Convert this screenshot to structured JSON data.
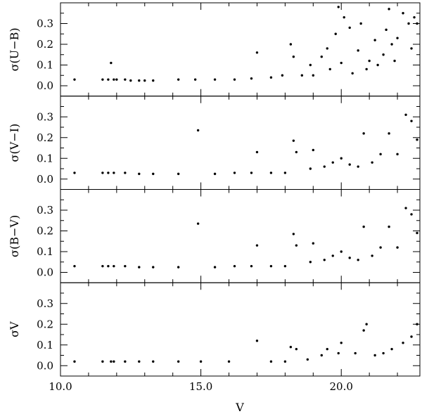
{
  "chart_data": {
    "type": "scatter",
    "xlabel": "V",
    "xlim": [
      10.0,
      22.8
    ],
    "x_ticks": [
      10.0,
      15.0,
      20.0
    ],
    "x_tick_labels": [
      "10.0",
      "15.0",
      "20.0"
    ],
    "panels": [
      {
        "ylabel": "σ(U−B)",
        "ylim": [
          -0.05,
          0.4
        ],
        "y_ticks": [
          0.0,
          0.1,
          0.2,
          0.3
        ],
        "y_tick_labels": [
          "0.0",
          "0.1",
          "0.2",
          "0.3"
        ],
        "points": [
          [
            10.5,
            0.03
          ],
          [
            11.5,
            0.03
          ],
          [
            11.7,
            0.03
          ],
          [
            11.8,
            0.11
          ],
          [
            11.9,
            0.03
          ],
          [
            12.0,
            0.03
          ],
          [
            12.3,
            0.03
          ],
          [
            12.5,
            0.025
          ],
          [
            12.8,
            0.025
          ],
          [
            13.0,
            0.025
          ],
          [
            13.3,
            0.025
          ],
          [
            14.2,
            0.03
          ],
          [
            14.8,
            0.03
          ],
          [
            15.5,
            0.03
          ],
          [
            16.2,
            0.03
          ],
          [
            16.8,
            0.035
          ],
          [
            17.0,
            0.16
          ],
          [
            17.5,
            0.04
          ],
          [
            17.9,
            0.05
          ],
          [
            18.2,
            0.2
          ],
          [
            18.3,
            0.14
          ],
          [
            18.6,
            0.05
          ],
          [
            18.9,
            0.1
          ],
          [
            19.0,
            0.05
          ],
          [
            19.3,
            0.14
          ],
          [
            19.5,
            0.18
          ],
          [
            19.6,
            0.08
          ],
          [
            19.8,
            0.25
          ],
          [
            19.9,
            0.38
          ],
          [
            20.0,
            0.11
          ],
          [
            20.1,
            0.33
          ],
          [
            20.3,
            0.28
          ],
          [
            20.4,
            0.06
          ],
          [
            20.6,
            0.17
          ],
          [
            20.7,
            0.3
          ],
          [
            20.9,
            0.08
          ],
          [
            21.0,
            0.12
          ],
          [
            21.2,
            0.22
          ],
          [
            21.3,
            0.1
          ],
          [
            21.5,
            0.15
          ],
          [
            21.6,
            0.27
          ],
          [
            21.7,
            0.37
          ],
          [
            21.8,
            0.2
          ],
          [
            21.9,
            0.12
          ],
          [
            22.0,
            0.23
          ],
          [
            22.2,
            0.35
          ],
          [
            22.4,
            0.3
          ],
          [
            22.5,
            0.18
          ],
          [
            22.6,
            0.33
          ],
          [
            22.7,
            0.3
          ]
        ]
      },
      {
        "ylabel": "σ(V−I)",
        "ylim": [
          -0.05,
          0.4
        ],
        "y_ticks": [
          0.0,
          0.1,
          0.2,
          0.3
        ],
        "y_tick_labels": [
          "0.0",
          "0.1",
          "0.2",
          "0.3"
        ],
        "points": [
          [
            10.5,
            0.03
          ],
          [
            11.5,
            0.03
          ],
          [
            11.7,
            0.03
          ],
          [
            11.9,
            0.03
          ],
          [
            12.3,
            0.03
          ],
          [
            12.8,
            0.025
          ],
          [
            13.3,
            0.025
          ],
          [
            14.2,
            0.025
          ],
          [
            14.9,
            0.235
          ],
          [
            15.5,
            0.025
          ],
          [
            16.2,
            0.03
          ],
          [
            16.8,
            0.03
          ],
          [
            17.0,
            0.13
          ],
          [
            17.5,
            0.03
          ],
          [
            18.0,
            0.03
          ],
          [
            18.3,
            0.185
          ],
          [
            18.4,
            0.13
          ],
          [
            18.9,
            0.05
          ],
          [
            19.0,
            0.14
          ],
          [
            19.4,
            0.06
          ],
          [
            19.7,
            0.08
          ],
          [
            20.0,
            0.1
          ],
          [
            20.3,
            0.07
          ],
          [
            20.6,
            0.06
          ],
          [
            20.8,
            0.22
          ],
          [
            21.1,
            0.08
          ],
          [
            21.4,
            0.12
          ],
          [
            21.7,
            0.22
          ],
          [
            22.0,
            0.12
          ],
          [
            22.3,
            0.31
          ],
          [
            22.5,
            0.28
          ],
          [
            22.7,
            0.19
          ]
        ]
      },
      {
        "ylabel": "σ(B−V)",
        "ylim": [
          -0.05,
          0.4
        ],
        "y_ticks": [
          0.0,
          0.1,
          0.2,
          0.3
        ],
        "y_tick_labels": [
          "0.0",
          "0.1",
          "0.2",
          "0.3"
        ],
        "points": [
          [
            10.5,
            0.03
          ],
          [
            11.5,
            0.03
          ],
          [
            11.7,
            0.03
          ],
          [
            11.9,
            0.03
          ],
          [
            12.3,
            0.03
          ],
          [
            12.8,
            0.025
          ],
          [
            13.3,
            0.025
          ],
          [
            14.2,
            0.025
          ],
          [
            14.9,
            0.235
          ],
          [
            15.5,
            0.025
          ],
          [
            16.2,
            0.03
          ],
          [
            16.8,
            0.03
          ],
          [
            17.0,
            0.13
          ],
          [
            17.5,
            0.03
          ],
          [
            18.0,
            0.03
          ],
          [
            18.3,
            0.185
          ],
          [
            18.4,
            0.13
          ],
          [
            18.9,
            0.05
          ],
          [
            19.0,
            0.14
          ],
          [
            19.4,
            0.06
          ],
          [
            19.7,
            0.08
          ],
          [
            20.0,
            0.1
          ],
          [
            20.3,
            0.07
          ],
          [
            20.6,
            0.06
          ],
          [
            20.8,
            0.22
          ],
          [
            21.1,
            0.08
          ],
          [
            21.4,
            0.12
          ],
          [
            21.7,
            0.22
          ],
          [
            22.0,
            0.12
          ],
          [
            22.3,
            0.31
          ],
          [
            22.5,
            0.28
          ],
          [
            22.7,
            0.19
          ]
        ]
      },
      {
        "ylabel": "σV",
        "ylim": [
          -0.05,
          0.4
        ],
        "y_ticks": [
          0.0,
          0.1,
          0.2,
          0.3
        ],
        "y_tick_labels": [
          "0.0",
          "0.1",
          "0.2",
          "0.3"
        ],
        "points": [
          [
            10.5,
            0.02
          ],
          [
            11.5,
            0.02
          ],
          [
            11.8,
            0.02
          ],
          [
            11.9,
            0.02
          ],
          [
            12.3,
            0.02
          ],
          [
            12.8,
            0.02
          ],
          [
            13.3,
            0.02
          ],
          [
            14.2,
            0.02
          ],
          [
            15.0,
            0.02
          ],
          [
            16.0,
            0.02
          ],
          [
            17.0,
            0.12
          ],
          [
            17.5,
            0.02
          ],
          [
            18.0,
            0.02
          ],
          [
            18.2,
            0.09
          ],
          [
            18.4,
            0.08
          ],
          [
            18.8,
            0.03
          ],
          [
            19.3,
            0.05
          ],
          [
            19.5,
            0.08
          ],
          [
            19.9,
            0.06
          ],
          [
            20.0,
            0.11
          ],
          [
            20.5,
            0.06
          ],
          [
            20.8,
            0.17
          ],
          [
            20.9,
            0.2
          ],
          [
            21.2,
            0.05
          ],
          [
            21.5,
            0.06
          ],
          [
            21.8,
            0.08
          ],
          [
            22.2,
            0.11
          ],
          [
            22.5,
            0.14
          ],
          [
            22.7,
            0.2
          ]
        ]
      }
    ]
  }
}
